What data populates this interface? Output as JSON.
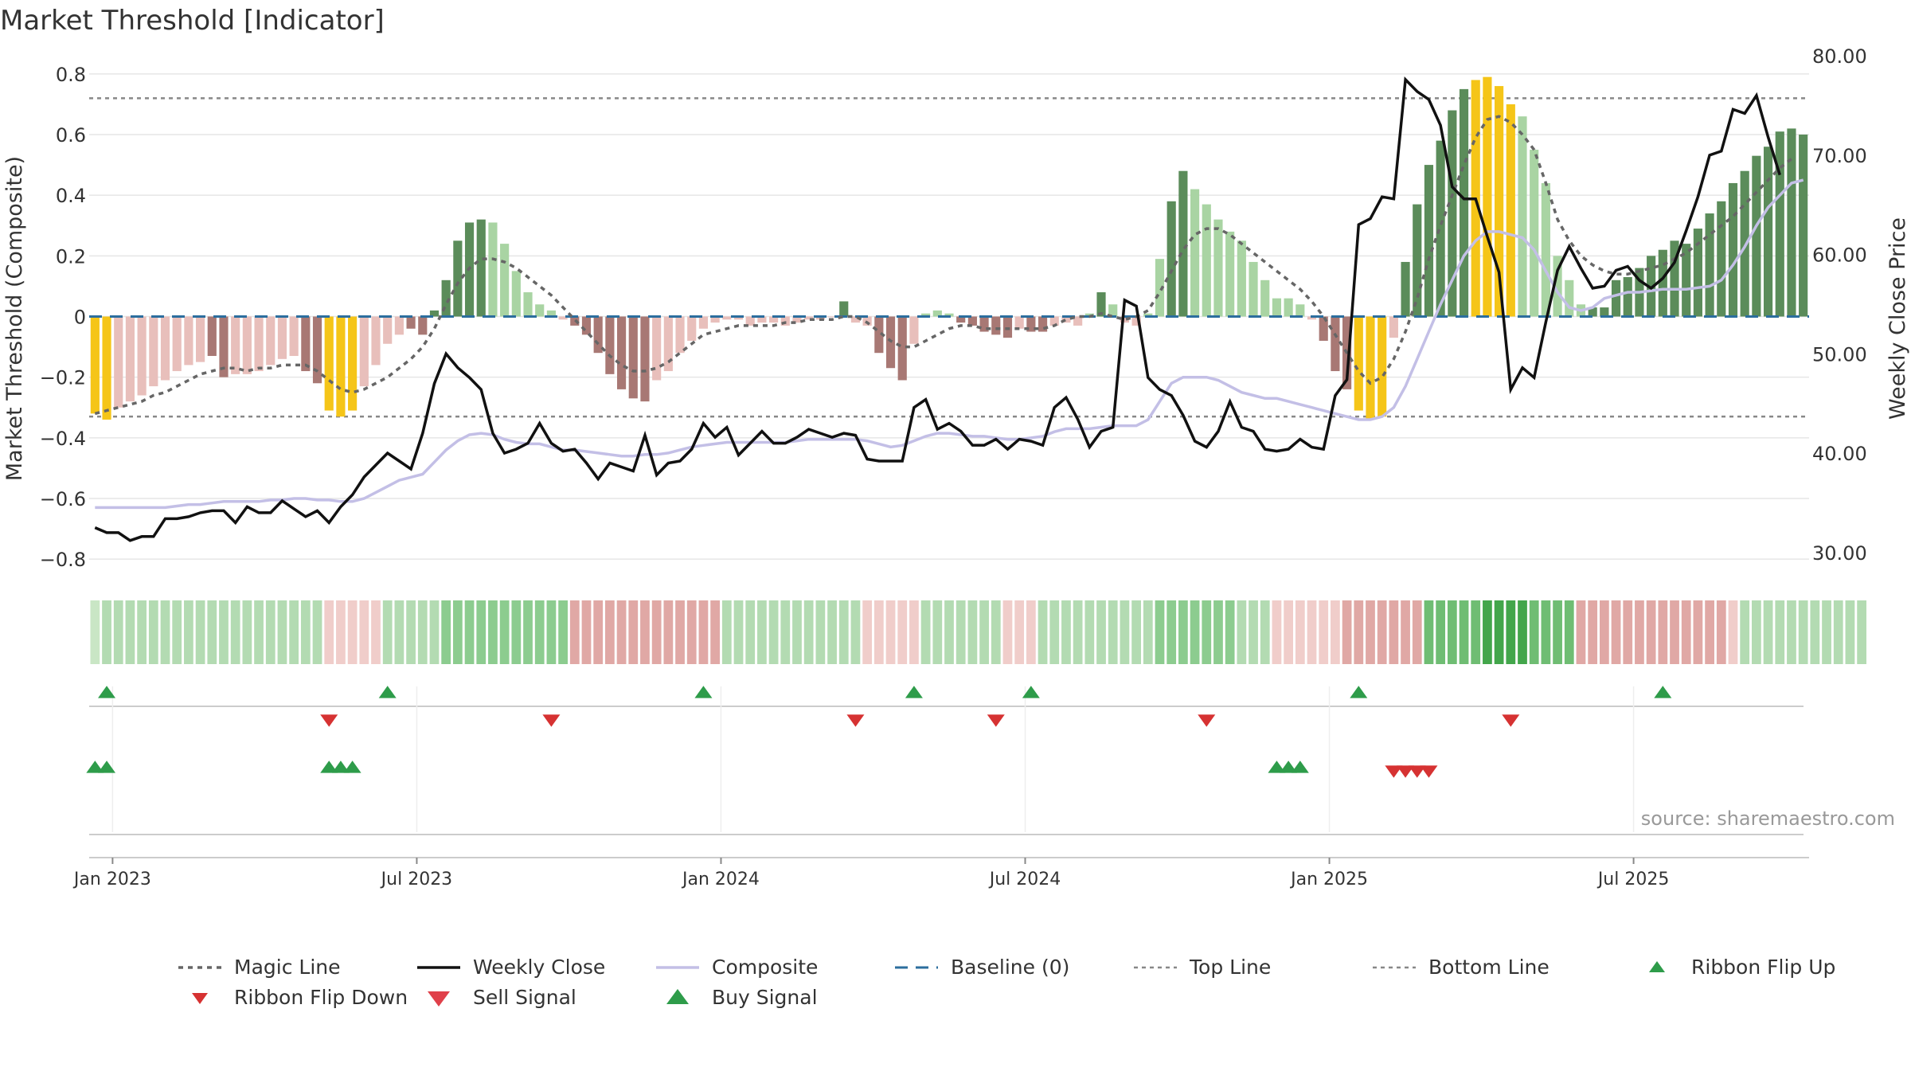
{
  "title": "Market Threshold [Indicator]",
  "source_note": "source: sharemaestro.com",
  "chart_data": {
    "type": "bar",
    "title": "Market Threshold [Indicator]",
    "ylabel_left": "Market Threshold (Composite)",
    "ylabel_right": "Weekly Close Price",
    "ylim_left": [
      -0.86,
      0.86
    ],
    "ylim_right": [
      27.5,
      80
    ],
    "yticks_left": [
      "0.8",
      "0.6",
      "0.4",
      "0.2",
      "0",
      "−0.2",
      "−0.4",
      "−0.6",
      "−0.8"
    ],
    "yticks_left_values": [
      0.8,
      0.6,
      0.4,
      0.2,
      0,
      -0.2,
      -0.4,
      -0.6,
      -0.8
    ],
    "yticks_right": [
      "80.00",
      "70.00",
      "60.00",
      "50.00",
      "40.00",
      "30.00"
    ],
    "yticks_right_values": [
      80,
      70,
      60,
      50,
      40,
      30
    ],
    "xticks": [
      "Jan 2023",
      "Jul 2023",
      "Jan 2024",
      "Jul 2024",
      "Jan 2025",
      "Jul 2025"
    ],
    "xticks_index": [
      2,
      28,
      54,
      80,
      106,
      132
    ],
    "top_line": 0.72,
    "bottom_line": -0.33,
    "grid": true,
    "legend_position": "bottom",
    "colors": {
      "strong_up": "#5b8c5a",
      "weak_up": "#a9d4a3",
      "strong_down": "#a87874",
      "weak_down": "#e8bfbb",
      "extreme": "#f5c518",
      "magic_line": "#666666",
      "weekly_close": "#111111",
      "composite": "#c3bfe6",
      "baseline": "#2c6e9e",
      "threshold_lines": "#888888",
      "buy": "#2e9c4a",
      "sell": "#d63232"
    },
    "composite_bars": [
      -0.32,
      -0.34,
      -0.3,
      -0.28,
      -0.26,
      -0.23,
      -0.21,
      -0.18,
      -0.16,
      -0.15,
      -0.13,
      -0.2,
      -0.19,
      -0.19,
      -0.18,
      -0.16,
      -0.14,
      -0.13,
      -0.18,
      -0.22,
      -0.31,
      -0.33,
      -0.31,
      -0.23,
      -0.16,
      -0.09,
      -0.06,
      -0.04,
      -0.06,
      0.02,
      0.12,
      0.25,
      0.31,
      0.32,
      0.31,
      0.24,
      0.15,
      0.08,
      0.04,
      0.02,
      -0.01,
      -0.03,
      -0.06,
      -0.12,
      -0.19,
      -0.24,
      -0.27,
      -0.28,
      -0.21,
      -0.18,
      -0.12,
      -0.08,
      -0.04,
      -0.02,
      -0.01,
      -0.01,
      -0.03,
      -0.02,
      -0.02,
      -0.03,
      -0.02,
      -0.01,
      -0.01,
      0.0,
      0.05,
      -0.02,
      -0.03,
      -0.12,
      -0.17,
      -0.21,
      -0.09,
      0.01,
      0.02,
      0.01,
      -0.02,
      -0.03,
      -0.05,
      -0.06,
      -0.07,
      -0.04,
      -0.05,
      -0.05,
      -0.03,
      -0.02,
      -0.03,
      0.01,
      0.08,
      0.04,
      -0.02,
      -0.03,
      0.01,
      0.19,
      0.38,
      0.48,
      0.42,
      0.37,
      0.32,
      0.28,
      0.25,
      0.18,
      0.12,
      0.06,
      0.06,
      0.04,
      -0.01,
      -0.08,
      -0.18,
      -0.24,
      -0.31,
      -0.34,
      -0.33,
      -0.07,
      0.18,
      0.37,
      0.5,
      0.58,
      0.68,
      0.75,
      0.78,
      0.79,
      0.76,
      0.7,
      0.66,
      0.55,
      0.44,
      0.2,
      0.12,
      0.04,
      0.03,
      0.03,
      0.12,
      0.13,
      0.16,
      0.2,
      0.22,
      0.25,
      0.24,
      0.29,
      0.34,
      0.38,
      0.44,
      0.48,
      0.53,
      0.56,
      0.61,
      0.62,
      0.6
    ],
    "bar_classes": [
      "ext",
      "ext",
      "wd",
      "wd",
      "wd",
      "wd",
      "wd",
      "wd",
      "wd",
      "wd",
      "sd",
      "sd",
      "wd",
      "wd",
      "wd",
      "wd",
      "wd",
      "wd",
      "sd",
      "sd",
      "ext",
      "ext",
      "ext",
      "wd",
      "wd",
      "wd",
      "wd",
      "sd",
      "sd",
      "su",
      "su",
      "su",
      "su",
      "su",
      "wu",
      "wu",
      "wu",
      "wu",
      "wu",
      "wu",
      "wd",
      "sd",
      "sd",
      "sd",
      "sd",
      "sd",
      "sd",
      "sd",
      "wd",
      "wd",
      "wd",
      "wd",
      "wd",
      "wd",
      "wd",
      "wd",
      "wd",
      "wd",
      "wd",
      "wd",
      "wd",
      "wd",
      "wd",
      "wd",
      "su",
      "wd",
      "wd",
      "sd",
      "sd",
      "sd",
      "wd",
      "wu",
      "wu",
      "wu",
      "sd",
      "sd",
      "sd",
      "sd",
      "sd",
      "wd",
      "sd",
      "sd",
      "wd",
      "wd",
      "wd",
      "wu",
      "su",
      "wu",
      "wd",
      "wd",
      "wu",
      "wu",
      "su",
      "su",
      "wu",
      "wu",
      "wu",
      "wu",
      "wu",
      "wu",
      "wu",
      "wu",
      "wu",
      "wu",
      "wd",
      "sd",
      "sd",
      "sd",
      "ext",
      "ext",
      "ext",
      "wd",
      "su",
      "su",
      "su",
      "su",
      "su",
      "su",
      "ext",
      "ext",
      "ext",
      "ext",
      "wu",
      "wu",
      "wu",
      "wu",
      "wu",
      "wu",
      "su",
      "su",
      "su",
      "su",
      "su",
      "su",
      "su",
      "su",
      "su",
      "su",
      "su",
      "su",
      "su",
      "su",
      "su",
      "su",
      "su",
      "su",
      "su",
      "su",
      "wu"
    ],
    "magic_line": [
      -0.32,
      -0.31,
      -0.3,
      -0.29,
      -0.28,
      -0.26,
      -0.25,
      -0.23,
      -0.21,
      -0.19,
      -0.18,
      -0.17,
      -0.17,
      -0.18,
      -0.17,
      -0.17,
      -0.16,
      -0.16,
      -0.16,
      -0.18,
      -0.21,
      -0.24,
      -0.25,
      -0.24,
      -0.22,
      -0.2,
      -0.17,
      -0.14,
      -0.1,
      -0.04,
      0.04,
      0.11,
      0.16,
      0.19,
      0.19,
      0.18,
      0.16,
      0.13,
      0.1,
      0.07,
      0.03,
      -0.01,
      -0.05,
      -0.09,
      -0.13,
      -0.16,
      -0.18,
      -0.18,
      -0.17,
      -0.15,
      -0.12,
      -0.09,
      -0.06,
      -0.05,
      -0.04,
      -0.03,
      -0.03,
      -0.03,
      -0.03,
      -0.02,
      -0.02,
      -0.01,
      -0.01,
      -0.01,
      0.0,
      0.0,
      -0.02,
      -0.05,
      -0.08,
      -0.1,
      -0.1,
      -0.08,
      -0.06,
      -0.04,
      -0.03,
      -0.03,
      -0.04,
      -0.04,
      -0.04,
      -0.04,
      -0.04,
      -0.04,
      -0.03,
      -0.01,
      0.0,
      0.0,
      0.01,
      0.0,
      -0.01,
      0.0,
      0.02,
      0.08,
      0.15,
      0.22,
      0.27,
      0.29,
      0.29,
      0.27,
      0.24,
      0.21,
      0.18,
      0.15,
      0.12,
      0.09,
      0.05,
      0.0,
      -0.06,
      -0.12,
      -0.18,
      -0.22,
      -0.2,
      -0.14,
      -0.05,
      0.06,
      0.19,
      0.3,
      0.4,
      0.5,
      0.59,
      0.65,
      0.66,
      0.64,
      0.6,
      0.55,
      0.44,
      0.32,
      0.25,
      0.2,
      0.17,
      0.15,
      0.14,
      0.14,
      0.15,
      0.16,
      0.17,
      0.19,
      0.21,
      0.24,
      0.27,
      0.3,
      0.33,
      0.37,
      0.41,
      0.45,
      0.49,
      0.52
    ],
    "composite_line": [
      -0.63,
      -0.63,
      -0.63,
      -0.63,
      -0.63,
      -0.63,
      -0.63,
      -0.625,
      -0.62,
      -0.62,
      -0.615,
      -0.61,
      -0.61,
      -0.61,
      -0.61,
      -0.605,
      -0.605,
      -0.6,
      -0.6,
      -0.605,
      -0.605,
      -0.61,
      -0.61,
      -0.6,
      -0.58,
      -0.56,
      -0.54,
      -0.53,
      -0.52,
      -0.48,
      -0.44,
      -0.41,
      -0.39,
      -0.385,
      -0.39,
      -0.405,
      -0.415,
      -0.42,
      -0.42,
      -0.43,
      -0.44,
      -0.44,
      -0.445,
      -0.45,
      -0.455,
      -0.46,
      -0.46,
      -0.455,
      -0.455,
      -0.45,
      -0.44,
      -0.43,
      -0.425,
      -0.42,
      -0.415,
      -0.415,
      -0.415,
      -0.415,
      -0.415,
      -0.415,
      -0.41,
      -0.405,
      -0.405,
      -0.405,
      -0.405,
      -0.405,
      -0.41,
      -0.42,
      -0.43,
      -0.425,
      -0.41,
      -0.395,
      -0.385,
      -0.385,
      -0.39,
      -0.395,
      -0.395,
      -0.4,
      -0.405,
      -0.405,
      -0.4,
      -0.395,
      -0.38,
      -0.37,
      -0.37,
      -0.37,
      -0.365,
      -0.36,
      -0.36,
      -0.36,
      -0.34,
      -0.28,
      -0.22,
      -0.2,
      -0.2,
      -0.2,
      -0.21,
      -0.23,
      -0.25,
      -0.26,
      -0.27,
      -0.27,
      -0.28,
      -0.29,
      -0.3,
      -0.31,
      -0.32,
      -0.33,
      -0.34,
      -0.34,
      -0.33,
      -0.3,
      -0.23,
      -0.14,
      -0.05,
      0.04,
      0.12,
      0.2,
      0.25,
      0.28,
      0.28,
      0.27,
      0.26,
      0.22,
      0.15,
      0.08,
      0.03,
      0.02,
      0.03,
      0.06,
      0.07,
      0.08,
      0.08,
      0.085,
      0.09,
      0.09,
      0.09,
      0.095,
      0.1,
      0.12,
      0.17,
      0.23,
      0.3,
      0.36,
      0.4,
      0.44,
      0.45
    ],
    "weekly_close": [
      32.5,
      32.0,
      32.0,
      31.2,
      31.6,
      31.6,
      33.4,
      33.4,
      33.6,
      34.0,
      34.2,
      34.2,
      33.0,
      34.6,
      34.0,
      34.0,
      35.2,
      34.4,
      33.6,
      34.2,
      33.0,
      34.6,
      35.8,
      37.6,
      38.8,
      40.0,
      39.2,
      38.4,
      42.0,
      47.0,
      50.0,
      48.6,
      47.6,
      46.4,
      42.0,
      40.0,
      40.4,
      41.0,
      43.0,
      41.0,
      40.2,
      40.4,
      39.0,
      37.4,
      39.0,
      38.6,
      38.2,
      41.8,
      37.8,
      39.0,
      39.2,
      40.4,
      43.0,
      41.6,
      42.6,
      39.8,
      41.0,
      42.2,
      41.0,
      41.0,
      41.6,
      42.4,
      42.0,
      41.6,
      42.0,
      41.8,
      39.4,
      39.2,
      39.2,
      39.2,
      44.6,
      45.4,
      42.4,
      43.0,
      42.2,
      40.8,
      40.8,
      41.4,
      40.4,
      41.4,
      41.2,
      40.8,
      44.6,
      45.6,
      43.4,
      40.6,
      42.2,
      42.6,
      55.4,
      54.8,
      47.6,
      46.4,
      45.8,
      43.8,
      41.2,
      40.6,
      42.2,
      45.2,
      42.6,
      42.2,
      40.4,
      40.2,
      40.4,
      41.4,
      40.6,
      40.4,
      45.8,
      47.4,
      63.0,
      63.6,
      65.8,
      65.6,
      77.6,
      76.4,
      75.6,
      73.0,
      66.8,
      65.6,
      65.6,
      61.8,
      58.2,
      46.4,
      48.6,
      47.6,
      53.2,
      58.4,
      60.8,
      58.6,
      56.6,
      56.8,
      58.4,
      58.8,
      57.4,
      56.6,
      57.6,
      59.2,
      62.4,
      65.8,
      70.0,
      70.4,
      74.6,
      74.2,
      76.0,
      71.8,
      68.0
    ],
    "ribbon": [
      "wu",
      "lu",
      "lu",
      "lu",
      "lu",
      "lu",
      "lu",
      "lu",
      "lu",
      "lu",
      "lu",
      "lu",
      "lu",
      "lu",
      "lu",
      "lu",
      "lu",
      "lu",
      "lu",
      "lu",
      "ld",
      "ld",
      "ld",
      "ld",
      "ld",
      "lu",
      "lu",
      "lu",
      "lu",
      "lu",
      "mu",
      "mu",
      "mu",
      "mu",
      "mu",
      "mu",
      "mu",
      "mu",
      "mu",
      "mu",
      "mu",
      "md",
      "md",
      "md",
      "md",
      "md",
      "md",
      "md",
      "md",
      "md",
      "md",
      "md",
      "md",
      "md",
      "lu",
      "lu",
      "lu",
      "lu",
      "lu",
      "lu",
      "lu",
      "lu",
      "lu",
      "lu",
      "lu",
      "lu",
      "ld",
      "ld",
      "ld",
      "ld",
      "ld",
      "lu",
      "lu",
      "lu",
      "lu",
      "lu",
      "lu",
      "lu",
      "ld",
      "ld",
      "ld",
      "lu",
      "lu",
      "lu",
      "lu",
      "lu",
      "lu",
      "lu",
      "lu",
      "lu",
      "lu",
      "mu",
      "mu",
      "mu",
      "mu",
      "mu",
      "mu",
      "mu",
      "lu",
      "lu",
      "lu",
      "ld",
      "ld",
      "ld",
      "ld",
      "ld",
      "ld",
      "md",
      "md",
      "md",
      "md",
      "md",
      "md",
      "md",
      "hu",
      "hu",
      "hu",
      "hu",
      "hu",
      "ru",
      "ru",
      "ru",
      "ru",
      "hu",
      "hu",
      "hu",
      "hu",
      "md",
      "md",
      "md",
      "md",
      "md",
      "md",
      "md",
      "md",
      "md",
      "md",
      "md",
      "md",
      "md",
      "ld",
      "lu",
      "lu",
      "lu",
      "lu",
      "lu",
      "lu",
      "lu",
      "lu",
      "lu",
      "lu",
      "lu"
    ],
    "ribbon_colors": {
      "wu": "#c9e6c5",
      "lu": "#b3dbb2",
      "mu": "#8ccc8f",
      "hu": "#6fbd73",
      "ru": "#43a64b",
      "ld": "#f0cdca",
      "md": "#e0a8a5"
    },
    "signals": {
      "ribbon_flip_up": [
        1,
        25,
        52,
        70,
        80,
        108,
        134
      ],
      "ribbon_flip_down": [
        20,
        39,
        65,
        77,
        95,
        121
      ],
      "buy": [
        0,
        1,
        20,
        21,
        22,
        101,
        102,
        103
      ],
      "sell": [
        111,
        112,
        113,
        114
      ]
    },
    "legend": [
      {
        "label": "Magic Line",
        "kind": "magic"
      },
      {
        "label": "Weekly Close",
        "kind": "close"
      },
      {
        "label": "Composite",
        "kind": "composite"
      },
      {
        "label": "Baseline (0)",
        "kind": "baseline"
      },
      {
        "label": "Top Line",
        "kind": "threshold"
      },
      {
        "label": "Bottom Line",
        "kind": "threshold"
      },
      {
        "label": "Ribbon Flip Up",
        "kind": "flip-up"
      },
      {
        "label": "Ribbon Flip Down",
        "kind": "flip-down"
      },
      {
        "label": "Sell Signal",
        "kind": "sell"
      },
      {
        "label": "Buy Signal",
        "kind": "buy"
      }
    ]
  }
}
